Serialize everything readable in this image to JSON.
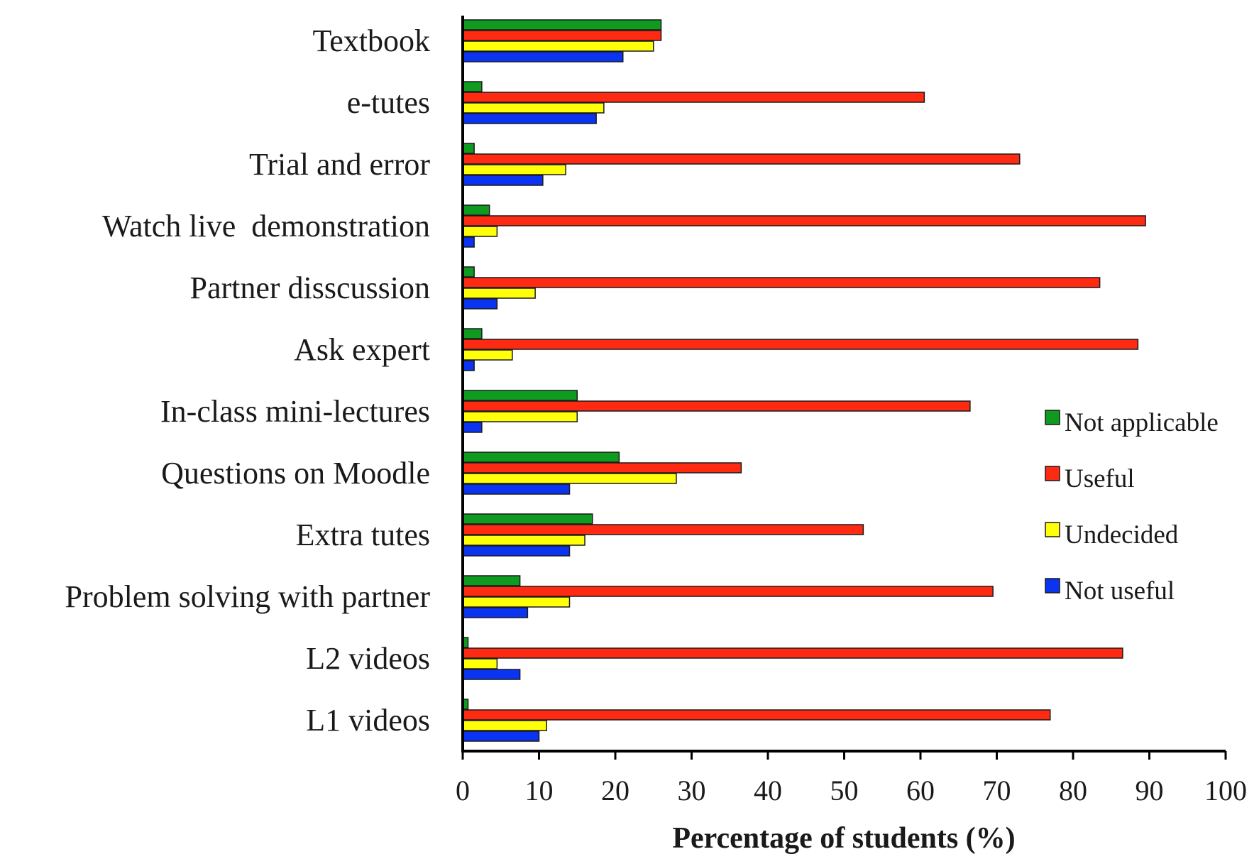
{
  "chart_data": {
    "type": "bar",
    "orientation": "horizontal",
    "title": "",
    "xlabel": "Percentage of students (%)",
    "ylabel": "",
    "xlim": [
      0,
      100
    ],
    "xticks": [
      "0",
      "10",
      "20",
      "30",
      "40",
      "50",
      "60",
      "70",
      "80",
      "90",
      "100"
    ],
    "grid": false,
    "legend_position": "right",
    "categories": [
      "Textbook",
      "e-tutes",
      "Trial and error",
      "Watch live  demonstration",
      "Partner disscussion",
      "Ask expert",
      "In-class mini-lectures",
      "Questions on Moodle",
      "Extra tutes",
      "Problem solving with partner",
      "L2 videos",
      "L1 videos"
    ],
    "series": [
      {
        "name": "Not applicable",
        "color": "#0f9b1f",
        "values": [
          26,
          2.5,
          1.5,
          3.5,
          1.5,
          2.5,
          15,
          20.5,
          17,
          7.5,
          0.7,
          0.7
        ]
      },
      {
        "name": "Useful",
        "color": "#ff2a12",
        "values": [
          26,
          60.5,
          73,
          89.5,
          83.5,
          88.5,
          66.5,
          36.5,
          52.5,
          69.5,
          86.5,
          77
        ]
      },
      {
        "name": "Undecided",
        "color": "#ffff0a",
        "values": [
          25,
          18.5,
          13.5,
          4.5,
          9.5,
          6.5,
          15,
          28,
          16,
          14,
          4.5,
          11
        ]
      },
      {
        "name": "Not useful",
        "color": "#0a34f2",
        "values": [
          21,
          17.5,
          10.5,
          1.5,
          4.5,
          1.5,
          2.5,
          14,
          14,
          8.5,
          7.5,
          10
        ]
      }
    ],
    "legend_order": [
      "Not applicable",
      "Useful",
      "Undecided",
      "Not useful"
    ]
  }
}
